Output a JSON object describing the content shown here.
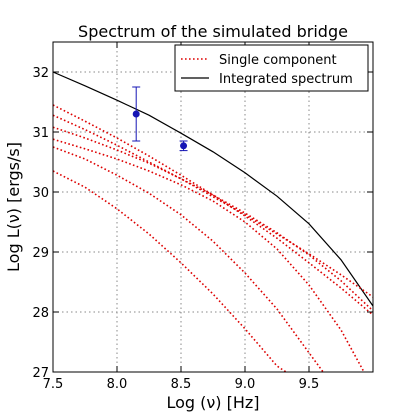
{
  "chart_data": {
    "type": "line",
    "title": "Spectrum of the simulated bridge",
    "xlabel": "Log (ν) [Hz]",
    "ylabel": "Log L(ν) [ergs/s]",
    "xlim": [
      7.5,
      10.0
    ],
    "ylim": [
      27.0,
      32.5
    ],
    "xticks": [
      7.5,
      8.0,
      8.5,
      9.0,
      9.5
    ],
    "xtick_labels": [
      "7.5",
      "8.0",
      "8.5",
      "9.0",
      "9.5"
    ],
    "yticks": [
      27,
      28,
      29,
      30,
      31,
      32
    ],
    "ytick_labels": [
      "27",
      "28",
      "29",
      "30",
      "31",
      "32"
    ],
    "grid": true,
    "legend_position": "top-right",
    "series": [
      {
        "name": "Integrated spectrum",
        "style": "solid",
        "color": "#000000",
        "x": [
          7.5,
          7.75,
          8.0,
          8.25,
          8.5,
          8.75,
          9.0,
          9.25,
          9.5,
          9.75,
          10.0
        ],
        "y": [
          32.0,
          31.77,
          31.53,
          31.28,
          30.98,
          30.67,
          30.32,
          29.93,
          29.47,
          28.87,
          28.1
        ]
      },
      {
        "name": "Single component",
        "style": "dotted",
        "color": "#dd0000",
        "components": [
          {
            "x": [
              7.5,
              7.75,
              8.0,
              8.25,
              8.5,
              8.75,
              9.0,
              9.25,
              9.5,
              9.75,
              10.0
            ],
            "y": [
              31.45,
              31.18,
              30.9,
              30.6,
              30.28,
              29.95,
              29.6,
              29.23,
              28.82,
              28.4,
              27.95
            ]
          },
          {
            "x": [
              7.5,
              7.75,
              8.0,
              8.25,
              8.5,
              8.75,
              9.0,
              9.25,
              9.5,
              9.75,
              10.0
            ],
            "y": [
              31.28,
              31.04,
              30.78,
              30.5,
              30.22,
              29.92,
              29.62,
              29.3,
              28.97,
              28.62,
              28.25
            ]
          },
          {
            "x": [
              7.5,
              7.75,
              8.0,
              8.25,
              8.5,
              8.75,
              9.0,
              9.25,
              9.5,
              9.75,
              10.0
            ],
            "y": [
              31.08,
              30.9,
              30.7,
              30.48,
              30.22,
              29.95,
              29.65,
              29.32,
              28.95,
              28.52,
              28.02
            ]
          },
          {
            "x": [
              7.5,
              7.75,
              8.0,
              8.25,
              8.5,
              8.75,
              9.0,
              9.25,
              9.5,
              9.75,
              9.93
            ],
            "y": [
              30.88,
              30.72,
              30.55,
              30.35,
              30.12,
              29.85,
              29.5,
              29.05,
              28.45,
              27.7,
              27.0
            ]
          },
          {
            "x": [
              7.5,
              7.75,
              8.0,
              8.25,
              8.5,
              8.75,
              9.0,
              9.25,
              9.5,
              9.61
            ],
            "y": [
              30.75,
              30.55,
              30.28,
              29.98,
              29.62,
              29.18,
              28.65,
              28.05,
              27.32,
              27.0
            ]
          },
          {
            "x": [
              7.5,
              7.75,
              8.0,
              8.25,
              8.5,
              8.75,
              9.0,
              9.25,
              9.32
            ],
            "y": [
              30.35,
              30.08,
              29.72,
              29.3,
              28.82,
              28.3,
              27.72,
              27.1,
              27.0
            ]
          }
        ]
      },
      {
        "name": "",
        "type": "errorbar",
        "color": "#1515b5",
        "points": [
          {
            "x": 8.15,
            "y": 31.3,
            "err_low": 0.45,
            "err_high": 0.45
          },
          {
            "x": 8.52,
            "y": 30.77,
            "err_low": 0.08,
            "err_high": 0.08
          }
        ]
      }
    ],
    "legend": [
      {
        "label": "Single component",
        "style": "dotted",
        "color": "#dd0000"
      },
      {
        "label": "Integrated spectrum",
        "style": "solid",
        "color": "#000000"
      }
    ]
  }
}
